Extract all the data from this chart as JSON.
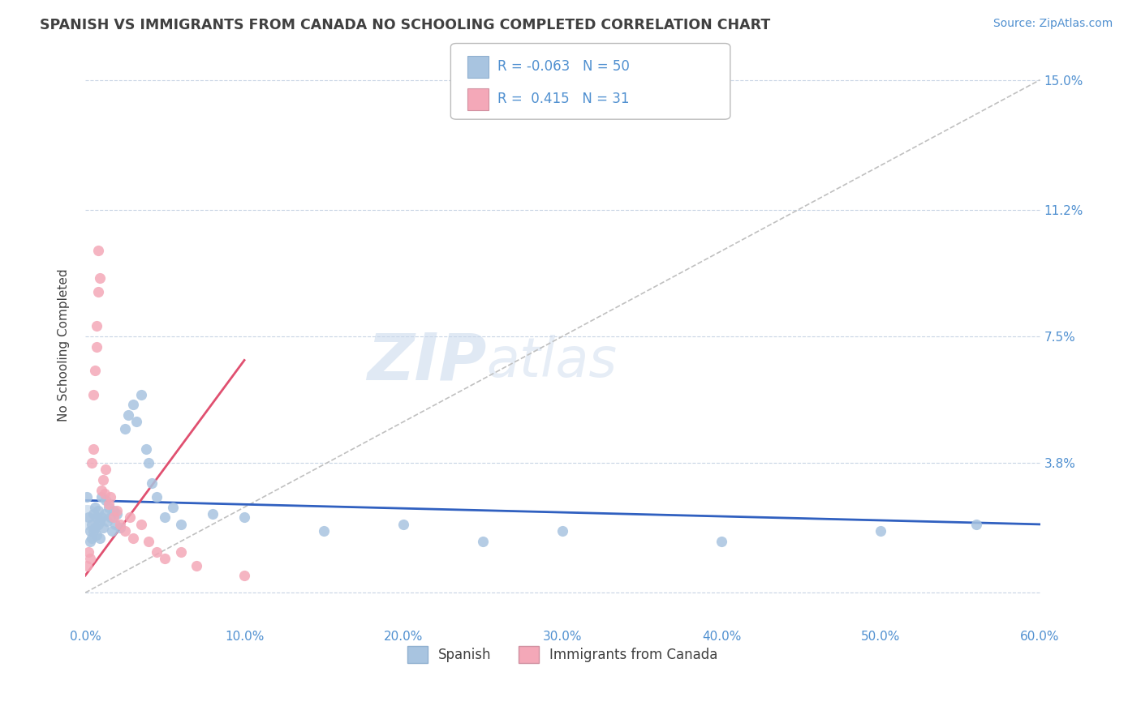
{
  "title": "SPANISH VS IMMIGRANTS FROM CANADA NO SCHOOLING COMPLETED CORRELATION CHART",
  "source": "Source: ZipAtlas.com",
  "ylabel": "No Schooling Completed",
  "xlabel": "",
  "legend_label_1": "Spanish",
  "legend_label_2": "Immigrants from Canada",
  "R1": -0.063,
  "N1": 50,
  "R2": 0.415,
  "N2": 31,
  "color1": "#a8c4e0",
  "color2": "#f4a8b8",
  "trend1_color": "#3060c0",
  "trend2_color": "#e05070",
  "trend_grey_color": "#c0c0c0",
  "xmin": 0.0,
  "xmax": 0.6,
  "ymin": -0.01,
  "ymax": 0.155,
  "yticks": [
    0.0,
    0.038,
    0.075,
    0.112,
    0.15
  ],
  "ytick_labels": [
    "",
    "3.8%",
    "7.5%",
    "11.2%",
    "15.0%"
  ],
  "xticks": [
    0.0,
    0.1,
    0.2,
    0.3,
    0.4,
    0.5,
    0.6
  ],
  "xtick_labels": [
    "0.0%",
    "10.0%",
    "20.0%",
    "30.0%",
    "40.0%",
    "50.0%",
    "60.0%"
  ],
  "watermark": "ZIPatlas",
  "background_color": "#ffffff",
  "title_color": "#404040",
  "axis_color": "#5090d0",
  "spanish_points": [
    [
      0.001,
      0.028
    ],
    [
      0.002,
      0.022
    ],
    [
      0.003,
      0.018
    ],
    [
      0.003,
      0.015
    ],
    [
      0.004,
      0.02
    ],
    [
      0.004,
      0.016
    ],
    [
      0.005,
      0.023
    ],
    [
      0.005,
      0.018
    ],
    [
      0.006,
      0.025
    ],
    [
      0.006,
      0.019
    ],
    [
      0.007,
      0.022
    ],
    [
      0.007,
      0.017
    ],
    [
      0.008,
      0.024
    ],
    [
      0.008,
      0.02
    ],
    [
      0.009,
      0.021
    ],
    [
      0.009,
      0.016
    ],
    [
      0.01,
      0.028
    ],
    [
      0.01,
      0.022
    ],
    [
      0.011,
      0.019
    ],
    [
      0.012,
      0.023
    ],
    [
      0.013,
      0.027
    ],
    [
      0.014,
      0.021
    ],
    [
      0.015,
      0.025
    ],
    [
      0.016,
      0.022
    ],
    [
      0.017,
      0.018
    ],
    [
      0.018,
      0.024
    ],
    [
      0.019,
      0.02
    ],
    [
      0.02,
      0.023
    ],
    [
      0.022,
      0.019
    ],
    [
      0.025,
      0.048
    ],
    [
      0.027,
      0.052
    ],
    [
      0.03,
      0.055
    ],
    [
      0.032,
      0.05
    ],
    [
      0.035,
      0.058
    ],
    [
      0.038,
      0.042
    ],
    [
      0.04,
      0.038
    ],
    [
      0.042,
      0.032
    ],
    [
      0.045,
      0.028
    ],
    [
      0.05,
      0.022
    ],
    [
      0.055,
      0.025
    ],
    [
      0.06,
      0.02
    ],
    [
      0.08,
      0.023
    ],
    [
      0.1,
      0.022
    ],
    [
      0.15,
      0.018
    ],
    [
      0.2,
      0.02
    ],
    [
      0.25,
      0.015
    ],
    [
      0.3,
      0.018
    ],
    [
      0.4,
      0.015
    ],
    [
      0.5,
      0.018
    ],
    [
      0.56,
      0.02
    ]
  ],
  "canada_points": [
    [
      0.001,
      0.008
    ],
    [
      0.002,
      0.012
    ],
    [
      0.003,
      0.01
    ],
    [
      0.004,
      0.038
    ],
    [
      0.005,
      0.042
    ],
    [
      0.005,
      0.058
    ],
    [
      0.006,
      0.065
    ],
    [
      0.007,
      0.072
    ],
    [
      0.007,
      0.078
    ],
    [
      0.008,
      0.1
    ],
    [
      0.008,
      0.088
    ],
    [
      0.009,
      0.092
    ],
    [
      0.01,
      0.03
    ],
    [
      0.011,
      0.033
    ],
    [
      0.012,
      0.029
    ],
    [
      0.013,
      0.036
    ],
    [
      0.015,
      0.026
    ],
    [
      0.016,
      0.028
    ],
    [
      0.018,
      0.022
    ],
    [
      0.02,
      0.024
    ],
    [
      0.022,
      0.02
    ],
    [
      0.025,
      0.018
    ],
    [
      0.028,
      0.022
    ],
    [
      0.03,
      0.016
    ],
    [
      0.035,
      0.02
    ],
    [
      0.04,
      0.015
    ],
    [
      0.045,
      0.012
    ],
    [
      0.05,
      0.01
    ],
    [
      0.06,
      0.012
    ],
    [
      0.07,
      0.008
    ],
    [
      0.1,
      0.005
    ]
  ],
  "trend1_start_x": 0.0,
  "trend1_end_x": 0.6,
  "trend1_start_y": 0.027,
  "trend1_end_y": 0.02,
  "trend2_start_x": 0.0,
  "trend2_end_x": 0.1,
  "trend2_start_y": 0.005,
  "trend2_end_y": 0.068,
  "trend_grey_start_x": 0.0,
  "trend_grey_end_x": 0.6,
  "trend_grey_start_y": 0.0,
  "trend_grey_end_y": 0.15
}
